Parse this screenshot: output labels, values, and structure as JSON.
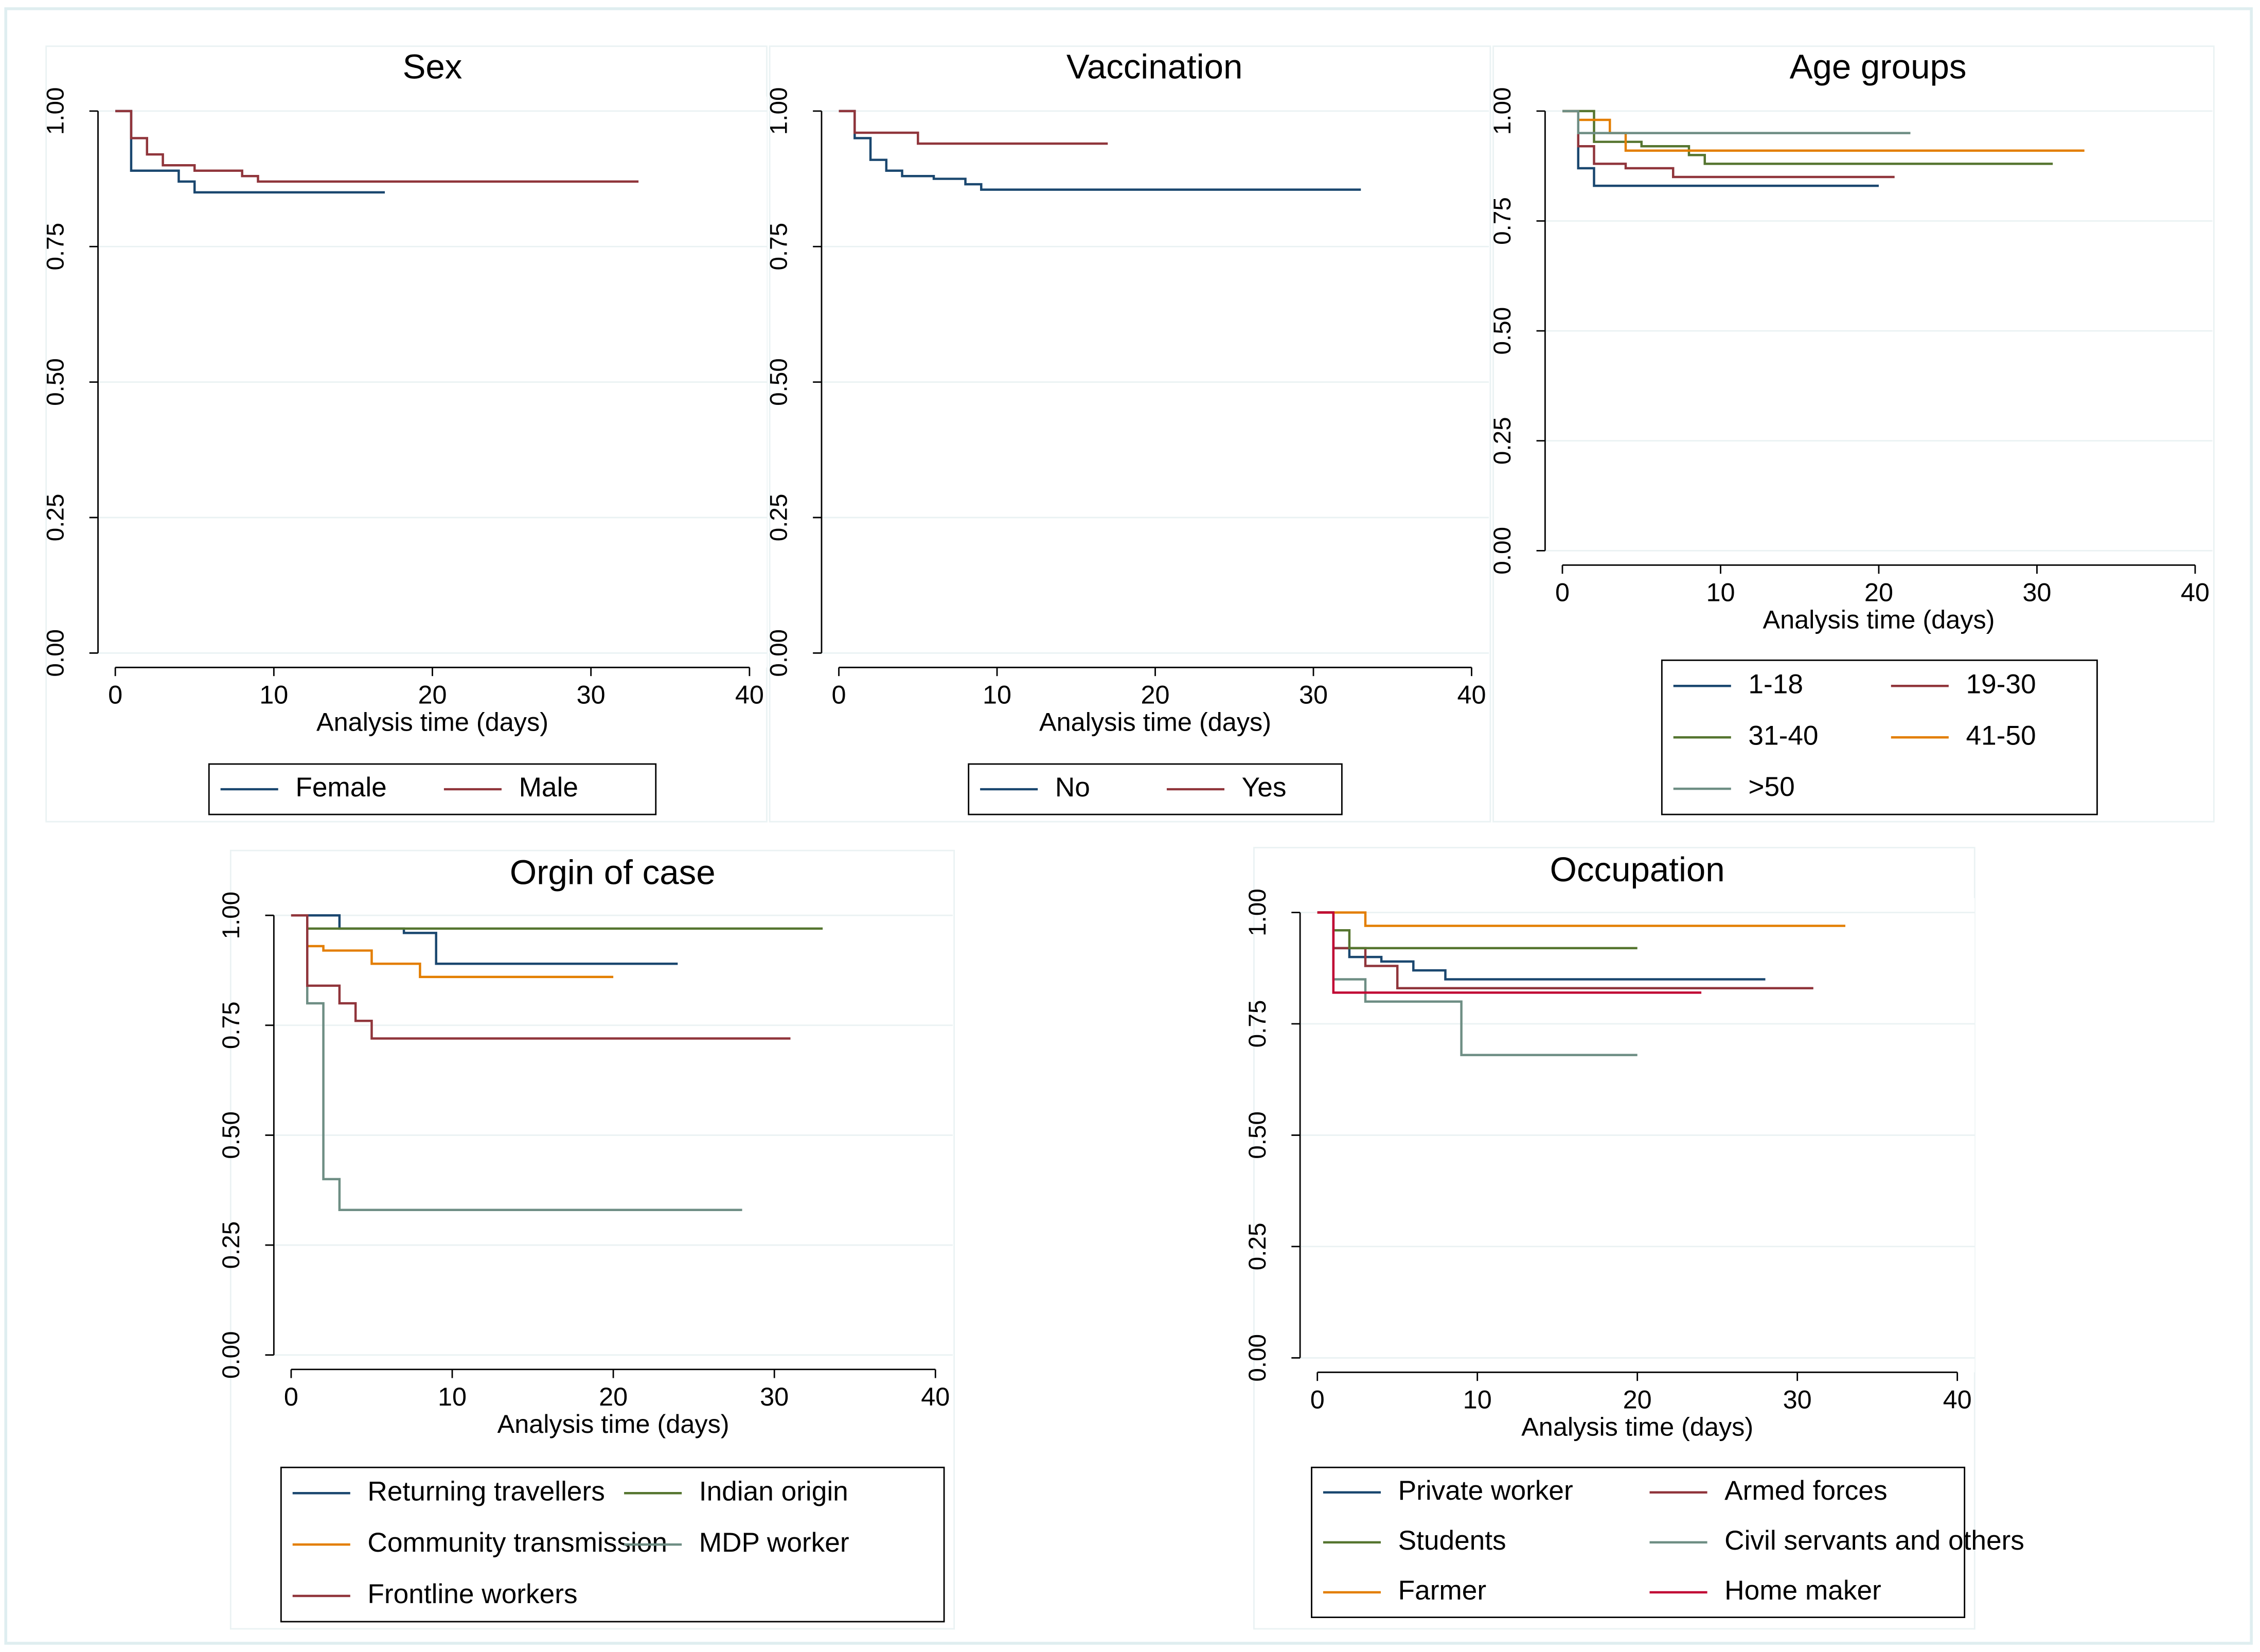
{
  "chart_data": [
    {
      "type": "step",
      "title": "Sex",
      "x_label": "Analysis time (days)",
      "xlim": [
        0,
        40
      ],
      "xticks": [
        0,
        10,
        20,
        30,
        40
      ],
      "ylim": [
        0,
        1
      ],
      "yticks": [
        {
          "value": 0,
          "label": "0.00"
        },
        {
          "value": 0.25,
          "label": "0.25"
        },
        {
          "value": 0.5,
          "label": "0.50"
        },
        {
          "value": 0.75,
          "label": "0.75"
        },
        {
          "value": 1,
          "label": "1.00"
        }
      ],
      "grid": true,
      "series": [
        {
          "name": "Female",
          "color": "#1a476f",
          "x": [
            0,
            1,
            4,
            5,
            17
          ],
          "values": [
            1,
            0.89,
            0.87,
            0.85,
            0.85
          ]
        },
        {
          "name": "Male",
          "color": "#90353b",
          "x": [
            0,
            1,
            2,
            3,
            5,
            8,
            9,
            33
          ],
          "values": [
            1,
            0.95,
            0.92,
            0.9,
            0.89,
            0.88,
            0.87,
            0.87
          ]
        }
      ]
    },
    {
      "type": "step",
      "title": "Vaccination",
      "x_label": "Analysis time (days)",
      "xlim": [
        0,
        40
      ],
      "xticks": [
        0,
        10,
        20,
        30,
        40
      ],
      "ylim": [
        0,
        1
      ],
      "yticks": [
        {
          "value": 0,
          "label": "0.00"
        },
        {
          "value": 0.25,
          "label": "0.25"
        },
        {
          "value": 0.5,
          "label": "0.50"
        },
        {
          "value": 0.75,
          "label": "0.75"
        },
        {
          "value": 1,
          "label": "1.00"
        }
      ],
      "grid": true,
      "series": [
        {
          "name": "No",
          "color": "#1a476f",
          "x": [
            0,
            1,
            2,
            3,
            4,
            6,
            8,
            9,
            33
          ],
          "values": [
            1,
            0.95,
            0.91,
            0.89,
            0.88,
            0.875,
            0.865,
            0.855,
            0.855
          ]
        },
        {
          "name": "Yes",
          "color": "#90353b",
          "x": [
            0,
            1,
            5,
            17
          ],
          "values": [
            1,
            0.96,
            0.94,
            0.94
          ]
        }
      ]
    },
    {
      "type": "step",
      "title": "Age groups",
      "x_label": "Analysis time (days)",
      "xlim": [
        0,
        40
      ],
      "xticks": [
        0,
        10,
        20,
        30,
        40
      ],
      "ylim": [
        0,
        1
      ],
      "yticks": [
        {
          "value": 0,
          "label": "0.00"
        },
        {
          "value": 0.25,
          "label": "0.25"
        },
        {
          "value": 0.5,
          "label": "0.50"
        },
        {
          "value": 0.75,
          "label": "0.75"
        },
        {
          "value": 1,
          "label": "1.00"
        }
      ],
      "grid": true,
      "series": [
        {
          "name": "1-18",
          "color": "#1a476f",
          "x": [
            0,
            1,
            2,
            20
          ],
          "values": [
            1,
            0.87,
            0.83,
            0.83
          ]
        },
        {
          "name": "19-30",
          "color": "#90353b",
          "x": [
            0,
            1,
            2,
            4,
            7,
            21
          ],
          "values": [
            1,
            0.92,
            0.88,
            0.87,
            0.85,
            0.85
          ]
        },
        {
          "name": "31-40",
          "color": "#55752f",
          "x": [
            0,
            2,
            5,
            8,
            9,
            31
          ],
          "values": [
            1,
            0.93,
            0.92,
            0.9,
            0.88,
            0.88
          ]
        },
        {
          "name": "41-50",
          "color": "#e37e00",
          "x": [
            0,
            1,
            3,
            4,
            33
          ],
          "values": [
            1,
            0.98,
            0.95,
            0.91,
            0.91
          ]
        },
        {
          "name": ">50",
          "color": "#6e8e84",
          "x": [
            0,
            1,
            22
          ],
          "values": [
            1,
            0.95,
            0.95
          ]
        }
      ]
    },
    {
      "type": "step",
      "title": "Orgin of case",
      "x_label": "Analysis time (days)",
      "xlim": [
        0,
        40
      ],
      "xticks": [
        0,
        10,
        20,
        30,
        40
      ],
      "ylim": [
        0,
        1
      ],
      "yticks": [
        {
          "value": 0,
          "label": "0.00"
        },
        {
          "value": 0.25,
          "label": "0.25"
        },
        {
          "value": 0.5,
          "label": "0.50"
        },
        {
          "value": 0.75,
          "label": "0.75"
        },
        {
          "value": 1,
          "label": "1.00"
        }
      ],
      "grid": true,
      "series": [
        {
          "name": "Returning travellers",
          "color": "#1a476f",
          "x": [
            0,
            3,
            7,
            9,
            24
          ],
          "values": [
            1,
            0.97,
            0.96,
            0.89,
            0.89
          ]
        },
        {
          "name": "Indian origin",
          "color": "#55752f",
          "x": [
            0,
            1,
            33
          ],
          "values": [
            1,
            0.97,
            0.97
          ]
        },
        {
          "name": "Community transmission",
          "color": "#e37e00",
          "x": [
            0,
            1,
            2,
            5,
            8,
            20
          ],
          "values": [
            1,
            0.93,
            0.92,
            0.89,
            0.86,
            0.86
          ]
        },
        {
          "name": "MDP worker",
          "color": "#6e8e84",
          "x": [
            0,
            1,
            2,
            3,
            28
          ],
          "values": [
            1,
            0.8,
            0.4,
            0.33,
            0.33
          ]
        },
        {
          "name": "Frontline workers",
          "color": "#90353b",
          "x": [
            0,
            1,
            3,
            4,
            5,
            31
          ],
          "values": [
            1,
            0.84,
            0.8,
            0.76,
            0.72,
            0.72
          ]
        }
      ]
    },
    {
      "type": "step",
      "title": "Occupation",
      "x_label": "Analysis time (days)",
      "xlim": [
        0,
        40
      ],
      "xticks": [
        0,
        10,
        20,
        30,
        40
      ],
      "ylim": [
        0,
        1
      ],
      "yticks": [
        {
          "value": 0,
          "label": "0.00"
        },
        {
          "value": 0.25,
          "label": "0.25"
        },
        {
          "value": 0.5,
          "label": "0.50"
        },
        {
          "value": 0.75,
          "label": "0.75"
        },
        {
          "value": 1,
          "label": "1.00"
        }
      ],
      "grid": true,
      "series": [
        {
          "name": "Private worker",
          "color": "#1a476f",
          "x": [
            0,
            1,
            2,
            4,
            6,
            8,
            28
          ],
          "values": [
            1,
            0.92,
            0.9,
            0.89,
            0.87,
            0.85,
            0.85
          ]
        },
        {
          "name": "Armed forces",
          "color": "#90353b",
          "x": [
            0,
            1,
            3,
            5,
            31
          ],
          "values": [
            1,
            0.92,
            0.88,
            0.83,
            0.83
          ]
        },
        {
          "name": "Students",
          "color": "#55752f",
          "x": [
            0,
            1,
            2,
            20
          ],
          "values": [
            1,
            0.96,
            0.92,
            0.92
          ]
        },
        {
          "name": "Civil servants and others",
          "color": "#6e8e84",
          "x": [
            0,
            1,
            3,
            9,
            20
          ],
          "values": [
            1,
            0.85,
            0.8,
            0.68,
            0.68
          ]
        },
        {
          "name": "Farmer",
          "color": "#e37e00",
          "x": [
            0,
            3,
            33
          ],
          "values": [
            1,
            0.97,
            0.97
          ]
        },
        {
          "name": "Home maker",
          "color": "#c10534",
          "x": [
            0,
            1,
            24
          ],
          "values": [
            1,
            0.82,
            0.82
          ]
        }
      ]
    }
  ]
}
